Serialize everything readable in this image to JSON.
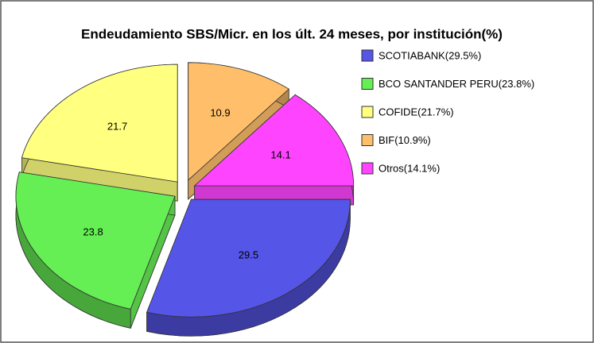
{
  "chart_data": {
    "type": "pie3d",
    "title": "Endeudamiento SBS/Micr. en los últ. 24 meses, por institución(%)",
    "categories": [
      "SCOTIABANK(29.5%)",
      "BCO SANTANDER PERU(23.8%)",
      "COFIDE(21.7%)",
      "BIF(10.9%)",
      "Otros(14.1%)"
    ],
    "values": [
      29.5,
      23.8,
      21.7,
      10.9,
      14.1
    ],
    "colors": [
      "#5555e8",
      "#66ee55",
      "#ffff80",
      "#ffbf6a",
      "#ff44ff"
    ],
    "legend": "right"
  }
}
